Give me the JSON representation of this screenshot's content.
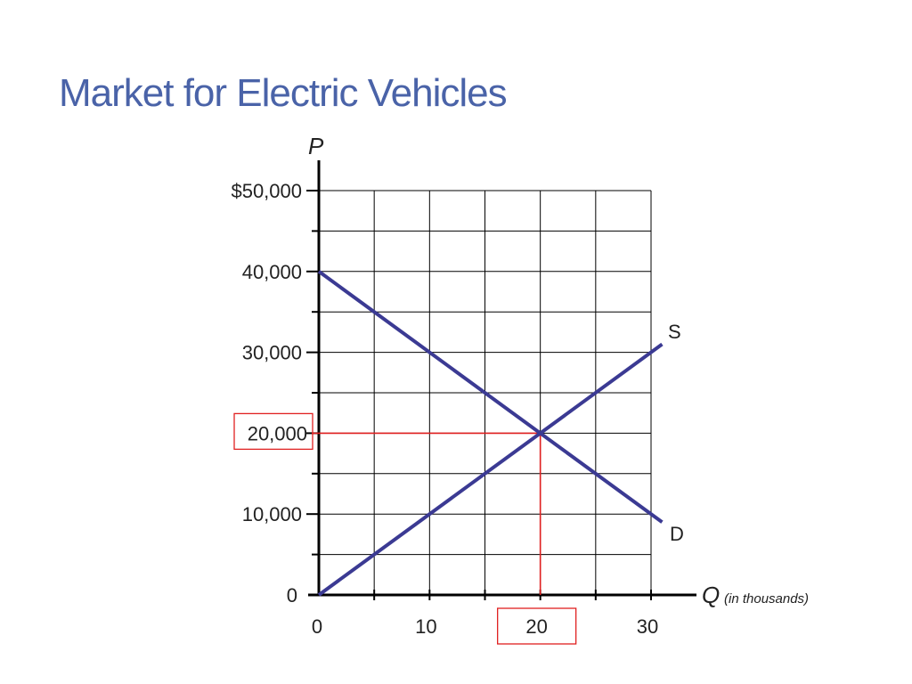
{
  "slide": {
    "title": "Market for Electric Vehicles"
  },
  "colors": {
    "title": "#4a63a8",
    "curves": "#3b3a93",
    "highlight": "#e02020",
    "grid": "#000000"
  },
  "chart_data": {
    "type": "line",
    "title": "",
    "xlabel": "Q",
    "xlabel_note": "(in thousands)",
    "ylabel": "P",
    "xlim": [
      0,
      30
    ],
    "ylim": [
      0,
      50000
    ],
    "grid": true,
    "x_ticks": [
      0,
      10,
      20,
      30
    ],
    "x_tick_labels": [
      "0",
      "10",
      "20",
      "30"
    ],
    "y_ticks": [
      0,
      10000,
      20000,
      30000,
      40000,
      50000
    ],
    "y_tick_labels": [
      "0",
      "10,000",
      "20,000",
      "30,000",
      "40,000",
      "$50,000"
    ],
    "series": [
      {
        "name": "S",
        "x": [
          0,
          31
        ],
        "y": [
          0,
          31000
        ]
      },
      {
        "name": "D",
        "x": [
          0,
          31
        ],
        "y": [
          40000,
          9000
        ]
      }
    ],
    "equilibrium": {
      "x": 20,
      "y": 20000
    },
    "highlighted_labels": [
      "20,000",
      "20"
    ]
  }
}
